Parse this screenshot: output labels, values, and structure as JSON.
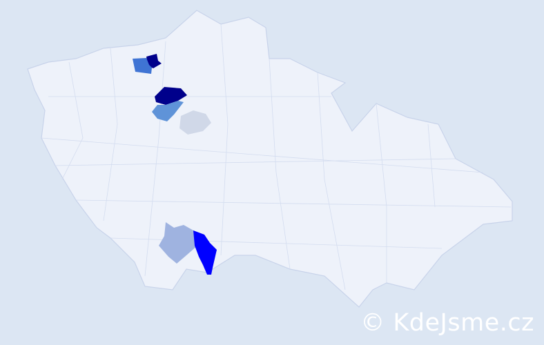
{
  "map": {
    "country_fill": "#eef2fa",
    "border_color": "#c8d3ea",
    "background": "#dce6f3",
    "highlight_colors": {
      "darkest": "#00008b",
      "strong": "#0000ff",
      "medium": "#3f74d4",
      "medium_light": "#5f93d8",
      "light": "#9fb3e0",
      "palest": "#d0d8e8"
    }
  },
  "watermark": {
    "text": "© KdeJsme.cz"
  }
}
